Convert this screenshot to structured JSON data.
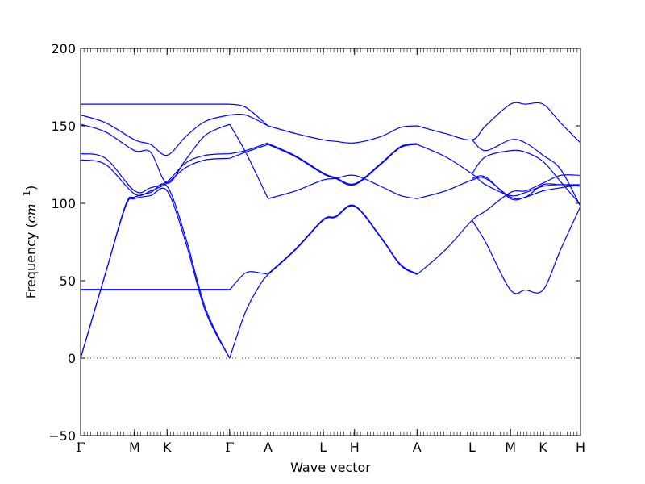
{
  "chart_data": {
    "type": "line",
    "xlabel": "Wave vector",
    "ylabel": "Frequency (",
    "ylabel_math": "cm",
    "ylabel_exp": "−1",
    "ylabel_close": ")",
    "ylim": [
      -50,
      200
    ],
    "yticks": [
      -50,
      0,
      50,
      100,
      150,
      200
    ],
    "ytick_labels": [
      "−50",
      "0",
      "50",
      "100",
      "150",
      "200"
    ],
    "zero_line": true,
    "line_color": "#0000ff",
    "kpoints": [
      {
        "label": "Γ",
        "x": 0.0
      },
      {
        "label": "M",
        "x": 0.108
      },
      {
        "label": "K",
        "x": 0.173
      },
      {
        "label": "Γ",
        "x": 0.298
      },
      {
        "label": "A",
        "x": 0.375
      },
      {
        "label": "L",
        "x": 0.485
      },
      {
        "label": "H",
        "x": 0.548
      },
      {
        "label": "A",
        "x": 0.673
      },
      {
        "label": "L",
        "x": 0.783
      },
      {
        "label": "M",
        "x": 0.86
      },
      {
        "label": "K",
        "x": 0.925
      },
      {
        "label": "H",
        "x": 1.0
      }
    ],
    "series": [
      {
        "x": [
          0,
          0.05,
          0.09,
          0.108,
          0.14,
          0.173,
          0.21,
          0.25,
          0.298
        ],
        "y": [
          0,
          55,
          98,
          103,
          105,
          108,
          75,
          30,
          0
        ]
      },
      {
        "x": [
          0,
          0.05,
          0.09,
          0.108,
          0.14,
          0.173,
          0.21,
          0.25,
          0.298
        ],
        "y": [
          0,
          55,
          99,
          104,
          107,
          111,
          78,
          32,
          0
        ]
      },
      {
        "x": [
          0,
          0.108,
          0.173,
          0.298
        ],
        "y": [
          44,
          44,
          44,
          44
        ]
      },
      {
        "x": [
          0,
          0.108,
          0.173,
          0.298
        ],
        "y": [
          44.4,
          44.4,
          44.4,
          44.4
        ]
      },
      {
        "x": [
          0,
          0.05,
          0.108,
          0.14,
          0.173,
          0.21,
          0.25,
          0.298
        ],
        "y": [
          128,
          125,
          106,
          108,
          113,
          123,
          128,
          129
        ]
      },
      {
        "x": [
          0,
          0.05,
          0.108,
          0.14,
          0.173,
          0.21,
          0.25,
          0.298
        ],
        "y": [
          132,
          129,
          108,
          110,
          114,
          126,
          131,
          132
        ]
      },
      {
        "x": [
          0,
          0.05,
          0.108,
          0.14,
          0.173,
          0.21,
          0.25,
          0.298
        ],
        "y": [
          151,
          146,
          134,
          133,
          113,
          128,
          144,
          151
        ]
      },
      {
        "x": [
          0,
          0.05,
          0.108,
          0.14,
          0.173,
          0.21,
          0.25,
          0.298
        ],
        "y": [
          157,
          152,
          141,
          138,
          131,
          143,
          153,
          157
        ]
      },
      {
        "x": [
          0,
          0.108,
          0.173,
          0.298
        ],
        "y": [
          164,
          164,
          164,
          164
        ]
      },
      {
        "x": [
          0.298,
          0.33,
          0.36,
          0.375
        ],
        "y": [
          0,
          30,
          48,
          54
        ]
      },
      {
        "x": [
          0.298,
          0.33,
          0.36,
          0.375
        ],
        "y": [
          44,
          55,
          55,
          54
        ]
      },
      {
        "x": [
          0.298,
          0.33,
          0.375
        ],
        "y": [
          151,
          133,
          103
        ]
      },
      {
        "x": [
          0.298,
          0.33,
          0.375
        ],
        "y": [
          129,
          133,
          138
        ]
      },
      {
        "x": [
          0.298,
          0.33,
          0.375
        ],
        "y": [
          132,
          134,
          139
        ]
      },
      {
        "x": [
          0.298,
          0.33,
          0.375
        ],
        "y": [
          157,
          157,
          150
        ]
      },
      {
        "x": [
          0.298,
          0.33,
          0.375
        ],
        "y": [
          164,
          162,
          150
        ]
      },
      {
        "x": [
          0.375,
          0.43,
          0.485,
          0.51,
          0.548,
          0.6,
          0.64,
          0.673
        ],
        "y": [
          54,
          70,
          89,
          91,
          98,
          78,
          60,
          54
        ]
      },
      {
        "x": [
          0.375,
          0.43,
          0.485,
          0.51,
          0.548,
          0.6,
          0.64,
          0.673
        ],
        "y": [
          54.5,
          70.5,
          89.5,
          91.5,
          98.5,
          78.5,
          60.5,
          54.5
        ]
      },
      {
        "x": [
          0.375,
          0.43,
          0.485,
          0.51,
          0.548,
          0.6,
          0.64,
          0.673
        ],
        "y": [
          103,
          108,
          115,
          116,
          118,
          111,
          105,
          103
        ]
      },
      {
        "x": [
          0.375,
          0.43,
          0.485,
          0.51,
          0.548,
          0.6,
          0.64,
          0.673
        ],
        "y": [
          138,
          130,
          119,
          116,
          112,
          125,
          136,
          138
        ]
      },
      {
        "x": [
          0.375,
          0.43,
          0.485,
          0.51,
          0.548,
          0.6,
          0.64,
          0.673
        ],
        "y": [
          138.6,
          130.6,
          119.6,
          116.6,
          112.6,
          125.6,
          136.6,
          138.6
        ]
      },
      {
        "x": [
          0.375,
          0.43,
          0.485,
          0.51,
          0.548,
          0.6,
          0.64,
          0.673
        ],
        "y": [
          150,
          145,
          141,
          140,
          139,
          143,
          149,
          150
        ]
      },
      {
        "x": [
          0.673,
          0.73,
          0.783,
          0.81,
          0.86,
          0.89,
          0.925,
          0.96,
          1.0
        ],
        "y": [
          54,
          70,
          89,
          95,
          107,
          108,
          113,
          118,
          118
        ]
      },
      {
        "x": [
          0.673,
          0.73,
          0.783,
          0.81,
          0.86,
          0.89,
          0.925,
          0.96,
          1.0
        ],
        "y": [
          103,
          108,
          115,
          116,
          104,
          104,
          112,
          112,
          112
        ]
      },
      {
        "x": [
          0.673,
          0.73,
          0.783,
          0.81,
          0.86,
          0.89,
          0.925,
          0.96,
          1.0
        ],
        "y": [
          138,
          130,
          119,
          112,
          105,
          107,
          111,
          112,
          111
        ]
      },
      {
        "x": [
          0.673,
          0.73,
          0.783,
          0.81,
          0.86,
          0.89,
          0.925,
          0.96,
          1.0
        ],
        "y": [
          150,
          145,
          141,
          150,
          164,
          164,
          164,
          152,
          139
        ]
      },
      {
        "x": [
          0.783,
          0.81,
          0.86,
          0.89,
          0.925,
          0.96,
          1.0
        ],
        "y": [
          89,
          75,
          44,
          44,
          44,
          70,
          98
        ]
      },
      {
        "x": [
          0.783,
          0.81,
          0.86,
          0.89,
          0.925,
          0.96,
          1.0
        ],
        "y": [
          119,
          130,
          134,
          133,
          127,
          114,
          99
        ]
      },
      {
        "x": [
          0.783,
          0.81,
          0.86,
          0.89,
          0.925,
          0.96,
          1.0
        ],
        "y": [
          141,
          134,
          141,
          139,
          131,
          122,
          98
        ]
      },
      {
        "x": [
          0.783,
          0.81,
          0.86,
          0.89,
          0.925,
          0.96,
          1.0
        ],
        "y": [
          116,
          117,
          103,
          104,
          108,
          110,
          112
        ]
      }
    ]
  }
}
